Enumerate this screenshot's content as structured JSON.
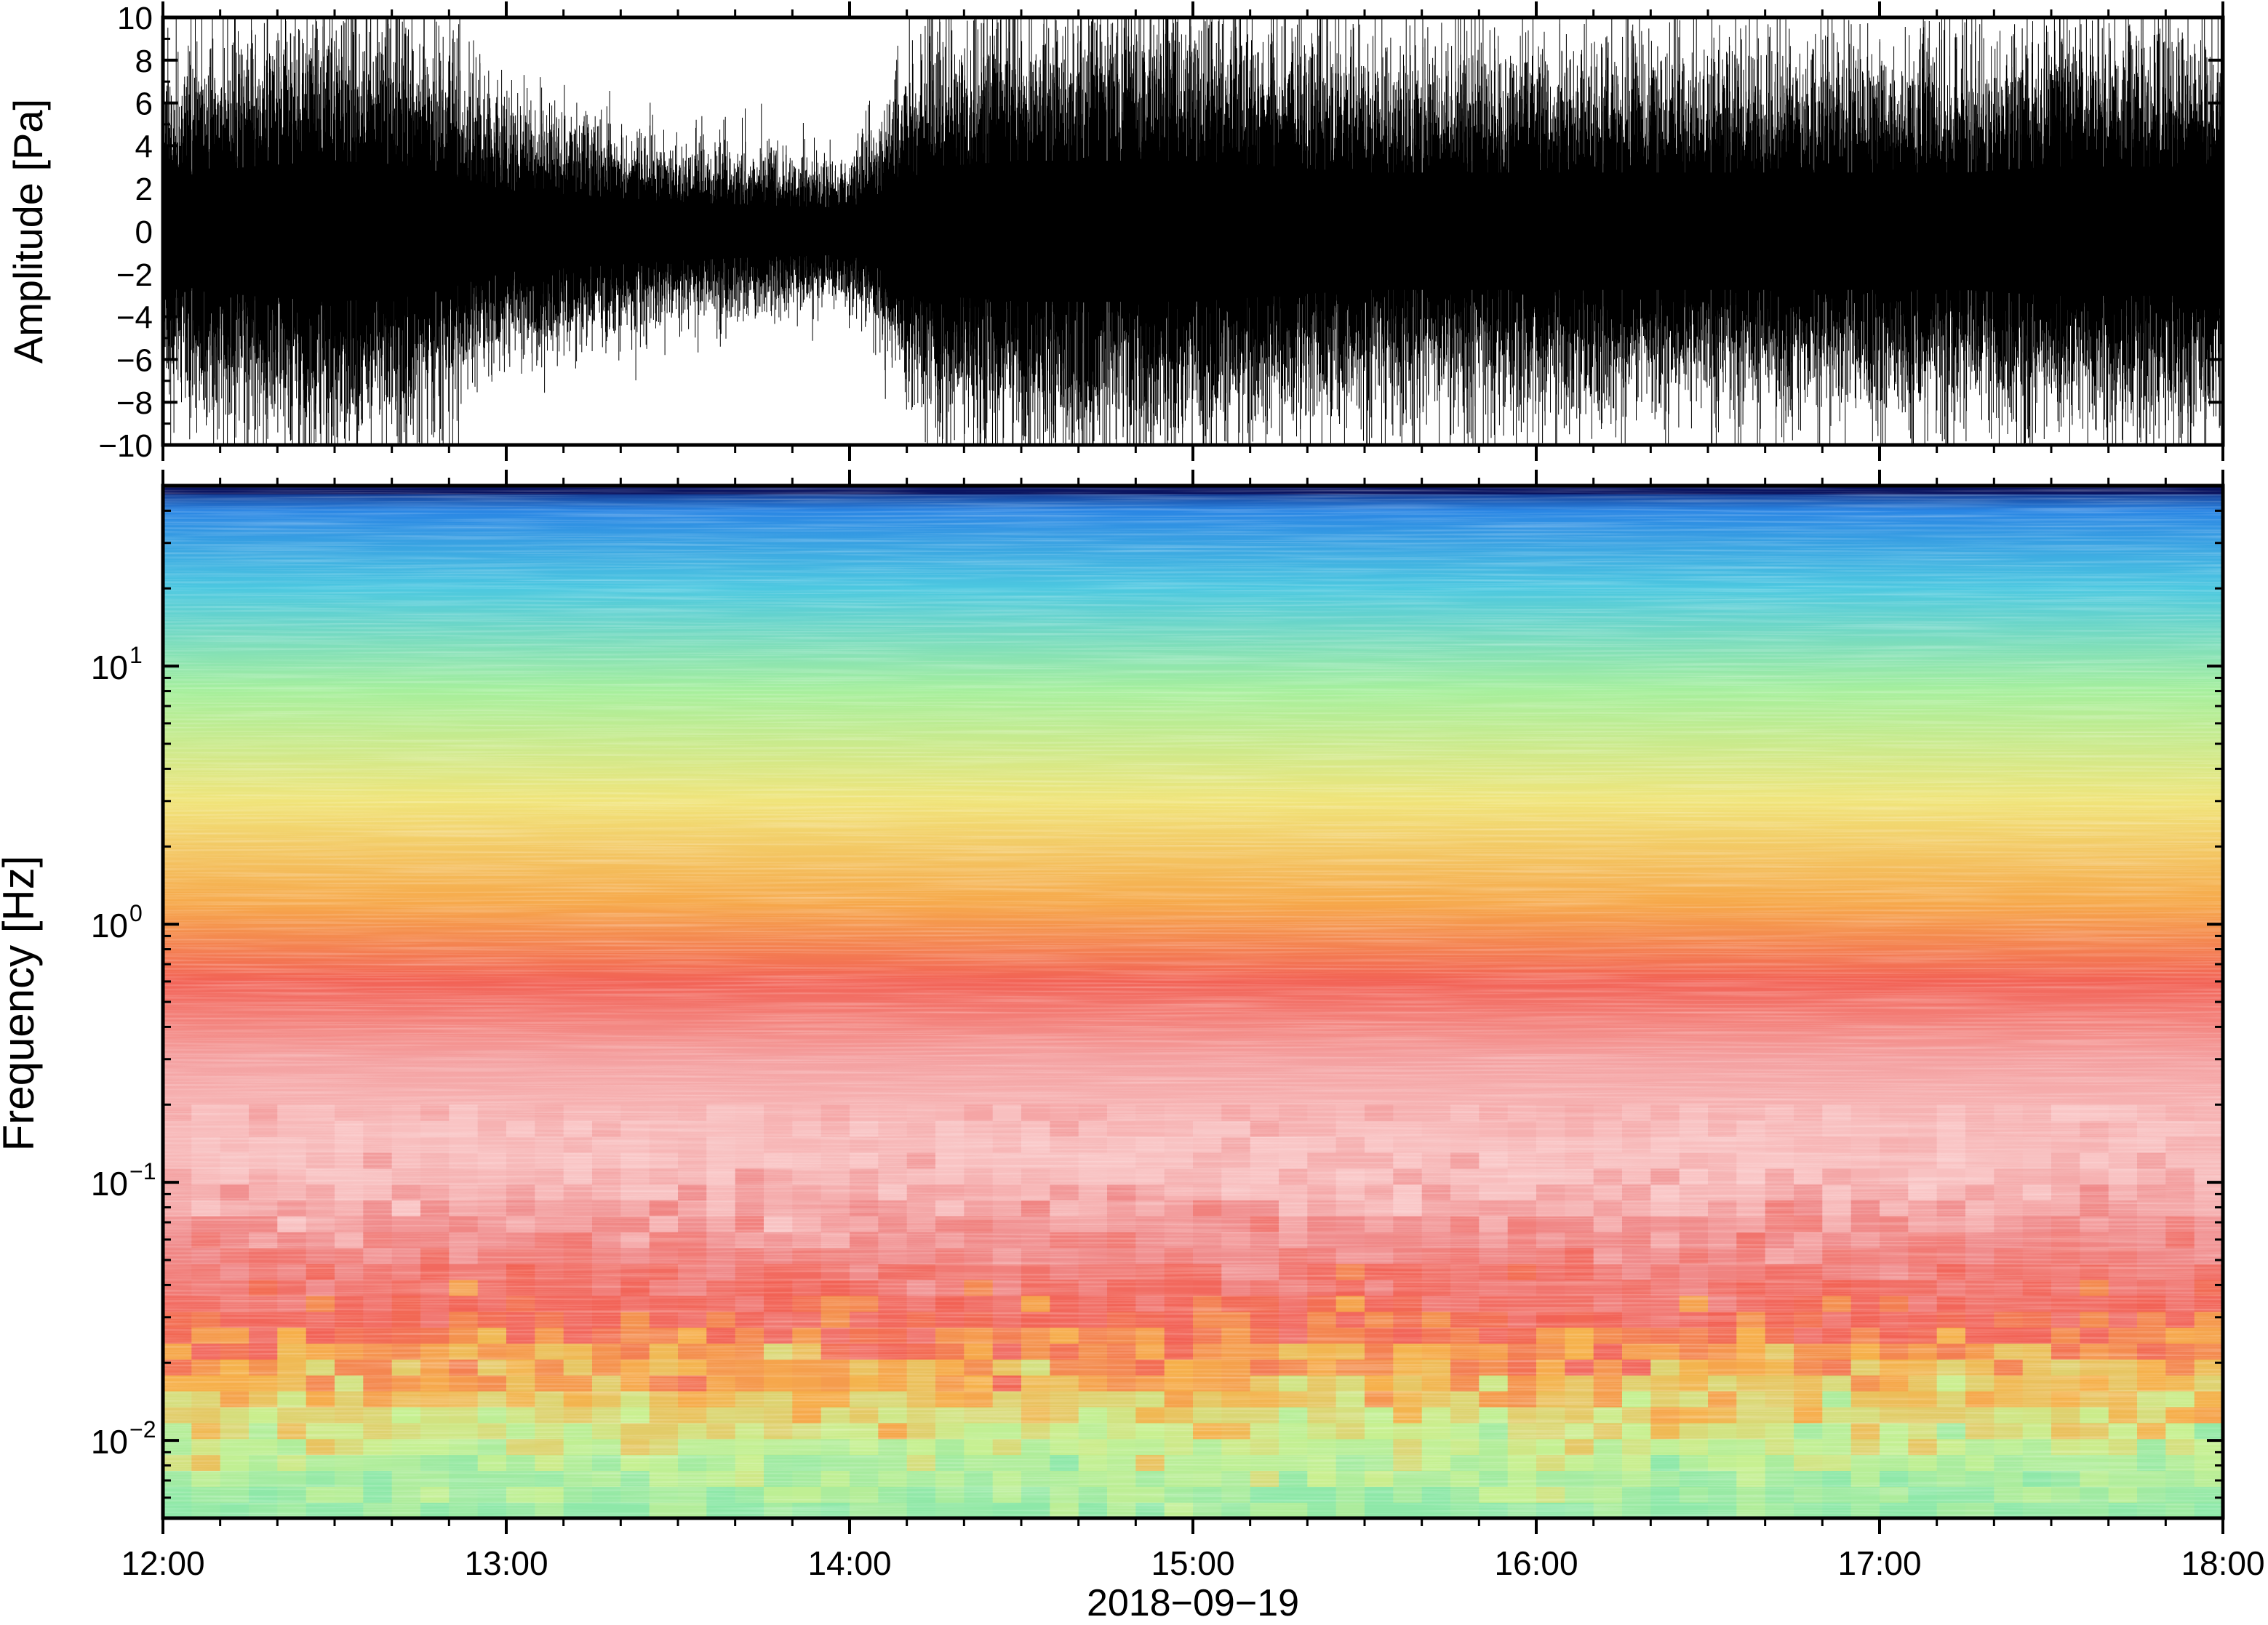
{
  "chart_data": [
    {
      "type": "line",
      "ylabel": "Amplitude [Pa]",
      "ylim": [
        -10,
        10
      ],
      "yticks": [
        -10,
        -8,
        -6,
        -4,
        -2,
        0,
        2,
        4,
        6,
        8,
        10
      ],
      "ytick_labels": [
        "−10",
        "−8",
        "−6",
        "−4",
        "−2",
        "0",
        "2",
        "4",
        "6",
        "8",
        "10"
      ],
      "xlim": [
        "12:00",
        "18:00"
      ],
      "envelope_hours": [
        12.0,
        12.25,
        12.5,
        12.75,
        13.0,
        13.25,
        13.5,
        13.75,
        14.0,
        14.25,
        14.5,
        14.75,
        15.0,
        15.25,
        15.5,
        15.75,
        16.0,
        16.25,
        16.5,
        16.75,
        17.0,
        17.25,
        17.5,
        17.75,
        18.0
      ],
      "envelope_amplitude": [
        4.5,
        5.5,
        6.0,
        5.5,
        3.5,
        3.0,
        2.5,
        2.2,
        2.0,
        5.5,
        6.0,
        6.0,
        6.0,
        5.5,
        5.0,
        5.0,
        5.0,
        5.0,
        5.0,
        5.0,
        5.0,
        5.0,
        5.5,
        5.5,
        5.5
      ],
      "grid": false
    },
    {
      "type": "heatmap",
      "ylabel": "Frequency [Hz]",
      "yscale": "log",
      "ylim": [
        0.005,
        50
      ],
      "yticks": [
        0.01,
        0.1,
        1,
        10
      ],
      "ytick_labels": [
        {
          "base": "10",
          "exp": "−2"
        },
        {
          "base": "10",
          "exp": "−1"
        },
        {
          "base": "10",
          "exp": "0"
        },
        {
          "base": "10",
          "exp": "1"
        }
      ],
      "xlabel": "2018−09−19",
      "xlim": [
        "12:00",
        "18:00"
      ],
      "xtick_labels": [
        "12:00",
        "13:00",
        "14:00",
        "15:00",
        "16:00",
        "17:00",
        "18:00"
      ],
      "colormap": [
        "#0a1a6e",
        "#1c62d8",
        "#3aa4ec",
        "#52d6cf",
        "#a6ef9c",
        "#f0f07a",
        "#f6b04a",
        "#f26255",
        "#f08c8c",
        "#f9c6c6"
      ],
      "band_profile": [
        {
          "freq_hz": 0.005,
          "color": "#8ee8a8"
        },
        {
          "freq_hz": 0.01,
          "color": "#c8f090"
        },
        {
          "freq_hz": 0.018,
          "color": "#f6b04a"
        },
        {
          "freq_hz": 0.03,
          "color": "#f26255"
        },
        {
          "freq_hz": 0.06,
          "color": "#f08c8c"
        },
        {
          "freq_hz": 0.12,
          "color": "#f9c6c6"
        },
        {
          "freq_hz": 0.3,
          "color": "#f4a0a0"
        },
        {
          "freq_hz": 0.6,
          "color": "#f26255"
        },
        {
          "freq_hz": 1.2,
          "color": "#f6a84a"
        },
        {
          "freq_hz": 3.0,
          "color": "#f0e47a"
        },
        {
          "freq_hz": 8.0,
          "color": "#a6ef9c"
        },
        {
          "freq_hz": 20.0,
          "color": "#4cc8e0"
        },
        {
          "freq_hz": 40.0,
          "color": "#2a86e4"
        },
        {
          "freq_hz": 50.0,
          "color": "#0a1a6e"
        }
      ],
      "grid": false
    }
  ]
}
